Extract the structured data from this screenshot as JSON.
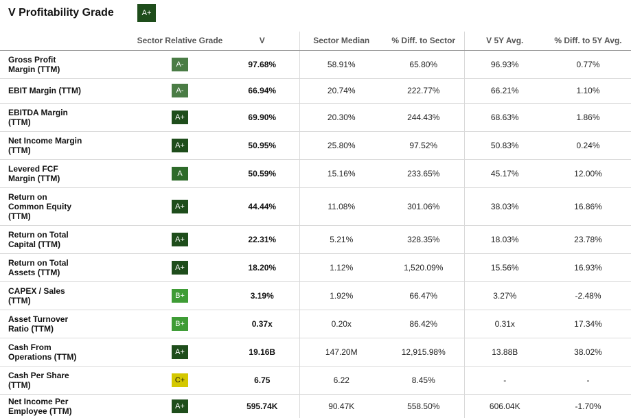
{
  "title": "V Profitability Grade",
  "overall_grade": "A+",
  "columns": {
    "metric": "",
    "grade": "Sector Relative Grade",
    "v": "V",
    "sector_median": "Sector Median",
    "diff_sector": "% Diff. to Sector",
    "v5y": "V 5Y Avg.",
    "diff_5y": "% Diff. to 5Y Avg."
  },
  "grade_colors": {
    "A+": "#1e4d1b",
    "A": "#2e6b2a",
    "A-": "#4a7c45",
    "B+": "#3e9c35",
    "C+": "#d4c800"
  },
  "rows": [
    {
      "metric": "Gross Profit Margin (TTM)",
      "lines": [
        "Gross Profit",
        "Margin (TTM)"
      ],
      "grade": "A-",
      "v": "97.68%",
      "sector_median": "58.91%",
      "diff_sector": "65.80%",
      "v5y": "96.93%",
      "diff_5y": "0.77%"
    },
    {
      "metric": "EBIT Margin (TTM)",
      "lines": [
        "EBIT Margin (TTM)"
      ],
      "grade": "A-",
      "v": "66.94%",
      "sector_median": "20.74%",
      "diff_sector": "222.77%",
      "v5y": "66.21%",
      "diff_5y": "1.10%"
    },
    {
      "metric": "EBITDA Margin (TTM)",
      "lines": [
        "EBITDA Margin",
        "(TTM)"
      ],
      "grade": "A+",
      "v": "69.90%",
      "sector_median": "20.30%",
      "diff_sector": "244.43%",
      "v5y": "68.63%",
      "diff_5y": "1.86%"
    },
    {
      "metric": "Net Income Margin (TTM)",
      "lines": [
        "Net Income Margin",
        "(TTM)"
      ],
      "grade": "A+",
      "v": "50.95%",
      "sector_median": "25.80%",
      "diff_sector": "97.52%",
      "v5y": "50.83%",
      "diff_5y": "0.24%"
    },
    {
      "metric": "Levered FCF Margin (TTM)",
      "lines": [
        "Levered FCF",
        "Margin (TTM)"
      ],
      "grade": "A",
      "v": "50.59%",
      "sector_median": "15.16%",
      "diff_sector": "233.65%",
      "v5y": "45.17%",
      "diff_5y": "12.00%"
    },
    {
      "metric": "Return on Common Equity (TTM)",
      "lines": [
        "Return on",
        "Common Equity",
        "(TTM)"
      ],
      "grade": "A+",
      "v": "44.44%",
      "sector_median": "11.08%",
      "diff_sector": "301.06%",
      "v5y": "38.03%",
      "diff_5y": "16.86%"
    },
    {
      "metric": "Return on Total Capital (TTM)",
      "lines": [
        "Return on Total",
        "Capital (TTM)"
      ],
      "grade": "A+",
      "v": "22.31%",
      "sector_median": "5.21%",
      "diff_sector": "328.35%",
      "v5y": "18.03%",
      "diff_5y": "23.78%"
    },
    {
      "metric": "Return on Total Assets (TTM)",
      "lines": [
        "Return on Total",
        "Assets (TTM)"
      ],
      "grade": "A+",
      "v": "18.20%",
      "sector_median": "1.12%",
      "diff_sector": "1,520.09%",
      "v5y": "15.56%",
      "diff_5y": "16.93%"
    },
    {
      "metric": "CAPEX / Sales (TTM)",
      "lines": [
        "CAPEX / Sales",
        "(TTM)"
      ],
      "grade": "B+",
      "v": "3.19%",
      "sector_median": "1.92%",
      "diff_sector": "66.47%",
      "v5y": "3.27%",
      "diff_5y": "-2.48%"
    },
    {
      "metric": "Asset Turnover Ratio (TTM)",
      "lines": [
        "Asset Turnover",
        "Ratio (TTM)"
      ],
      "grade": "B+",
      "v": "0.37x",
      "sector_median": "0.20x",
      "diff_sector": "86.42%",
      "v5y": "0.31x",
      "diff_5y": "17.34%"
    },
    {
      "metric": "Cash From Operations (TTM)",
      "lines": [
        "Cash From",
        "Operations (TTM)"
      ],
      "grade": "A+",
      "v": "19.16B",
      "sector_median": "147.20M",
      "diff_sector": "12,915.98%",
      "v5y": "13.88B",
      "diff_5y": "38.02%"
    },
    {
      "metric": "Cash Per Share (TTM)",
      "lines": [
        "Cash Per Share",
        "(TTM)"
      ],
      "grade": "C+",
      "v": "6.75",
      "sector_median": "6.22",
      "diff_sector": "8.45%",
      "v5y": "-",
      "diff_5y": "-"
    },
    {
      "metric": "Net Income Per Employee (TTM)",
      "lines": [
        "Net Income Per",
        "Employee (TTM)"
      ],
      "grade": "A+",
      "v": "595.74K",
      "sector_median": "90.47K",
      "diff_sector": "558.50%",
      "v5y": "606.04K",
      "diff_5y": "-1.70%"
    }
  ]
}
